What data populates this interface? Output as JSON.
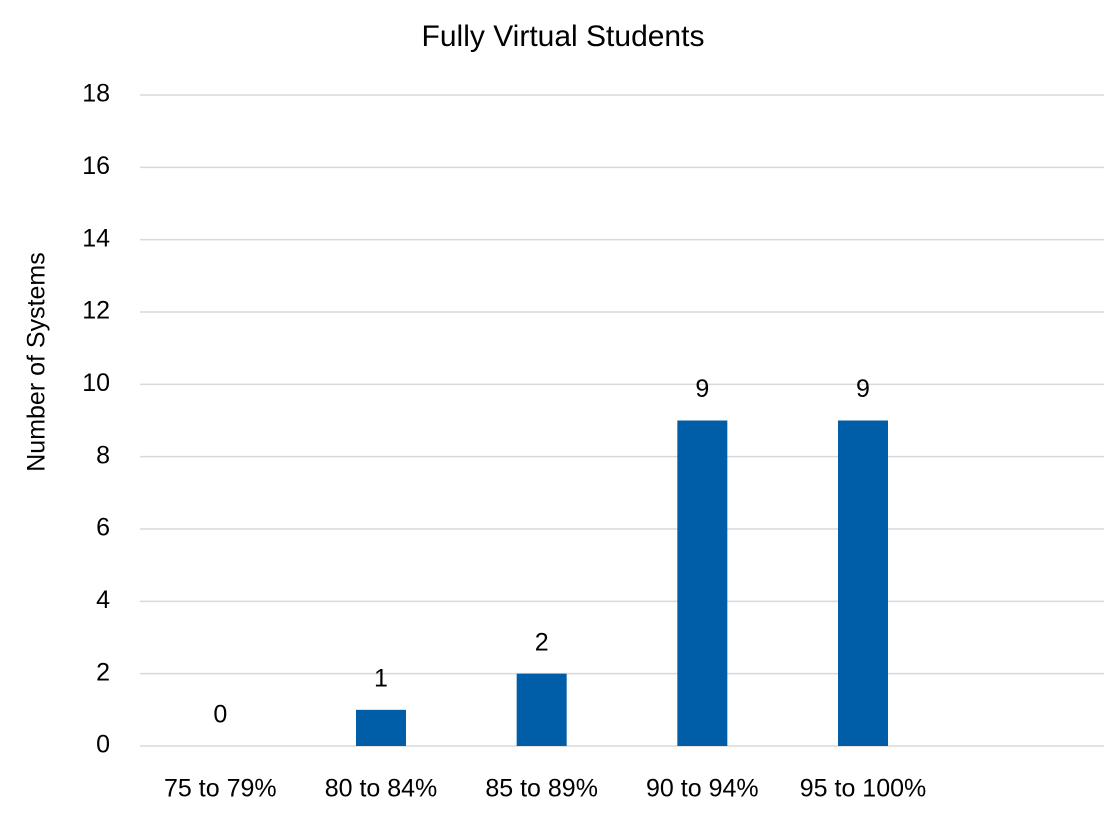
{
  "chart_data": {
    "type": "bar",
    "title": "Fully Virtual Students",
    "y_label": "Number of Systems",
    "categories": [
      "75 to 79%",
      "80 to 84%",
      "85 to 89%",
      "90 to 94%",
      "95 to 100%",
      null
    ],
    "values": [
      0,
      1,
      2,
      9,
      9,
      null
    ],
    "color": "#005ea8",
    "ylim": [
      0,
      18
    ],
    "yticks": [
      0,
      2,
      4,
      6,
      8,
      10,
      12,
      14,
      16,
      18
    ],
    "grid": true,
    "data_labels": true
  }
}
